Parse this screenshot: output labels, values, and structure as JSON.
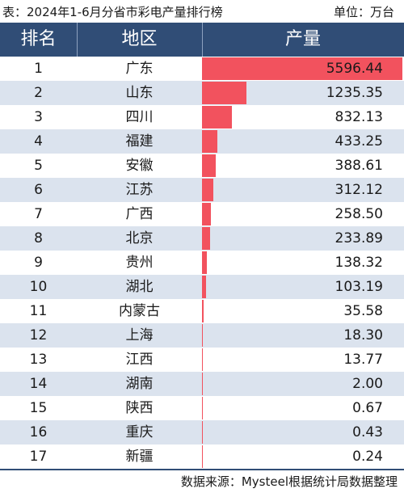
{
  "caption": "表：2024年1-6月分省市彩电产量排行榜",
  "unit": "单位：万台",
  "headers": {
    "rank": "排名",
    "region": "地区",
    "production": "产量"
  },
  "source": "数据来源：Mysteel根据统计局数据整理",
  "colors": {
    "header_bg": "#304d76",
    "bar": "#f2525e",
    "row_alt": "#dbe3ee"
  },
  "chart_data": {
    "type": "table",
    "columns": [
      "排名",
      "地区",
      "产量"
    ],
    "rows": [
      {
        "rank": "1",
        "region": "广东",
        "value": 5596.44,
        "label": "5596.44"
      },
      {
        "rank": "2",
        "region": "山东",
        "value": 1235.35,
        "label": "1235.35"
      },
      {
        "rank": "3",
        "region": "四川",
        "value": 832.13,
        "label": "832.13"
      },
      {
        "rank": "4",
        "region": "福建",
        "value": 433.25,
        "label": "433.25"
      },
      {
        "rank": "5",
        "region": "安徽",
        "value": 388.61,
        "label": "388.61"
      },
      {
        "rank": "6",
        "region": "江苏",
        "value": 312.12,
        "label": "312.12"
      },
      {
        "rank": "7",
        "region": "广西",
        "value": 258.5,
        "label": "258.50"
      },
      {
        "rank": "8",
        "region": "北京",
        "value": 233.89,
        "label": "233.89"
      },
      {
        "rank": "9",
        "region": "贵州",
        "value": 138.32,
        "label": "138.32"
      },
      {
        "rank": "10",
        "region": "湖北",
        "value": 103.19,
        "label": "103.19"
      },
      {
        "rank": "11",
        "region": "内蒙古",
        "value": 35.58,
        "label": "35.58"
      },
      {
        "rank": "12",
        "region": "上海",
        "value": 18.3,
        "label": "18.30"
      },
      {
        "rank": "13",
        "region": "江西",
        "value": 13.77,
        "label": "13.77"
      },
      {
        "rank": "14",
        "region": "湖南",
        "value": 2.0,
        "label": "2.00"
      },
      {
        "rank": "15",
        "region": "陕西",
        "value": 0.67,
        "label": "0.67"
      },
      {
        "rank": "16",
        "region": "重庆",
        "value": 0.43,
        "label": "0.43"
      },
      {
        "rank": "17",
        "region": "新疆",
        "value": 0.24,
        "label": "0.24"
      }
    ]
  }
}
